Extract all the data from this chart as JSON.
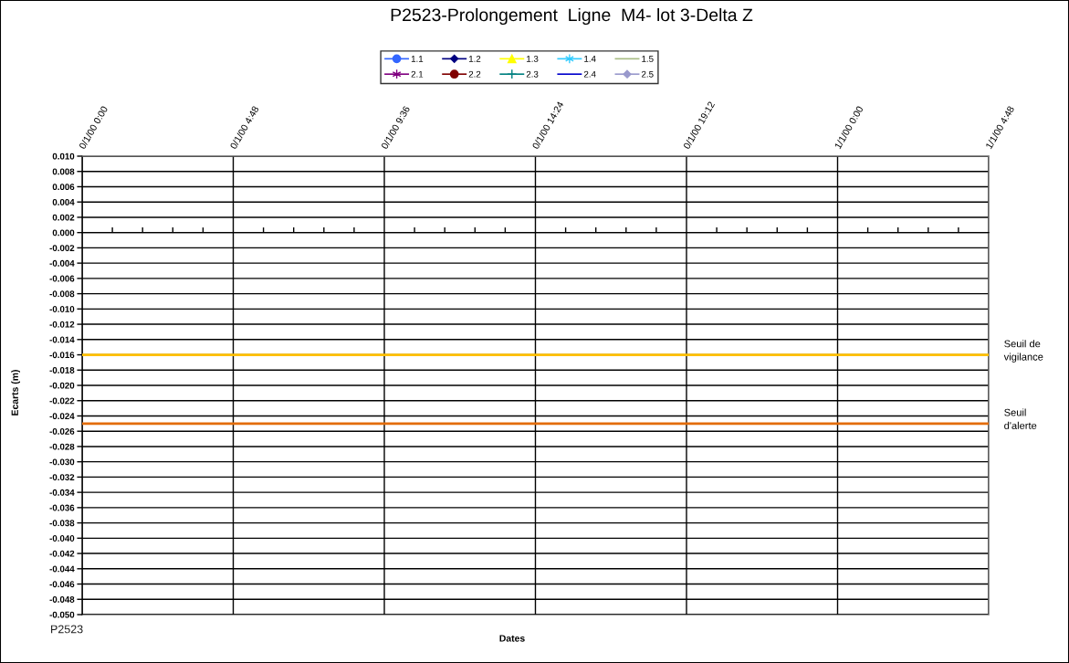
{
  "chart_data": {
    "type": "line",
    "title": "P2523-Prolongement  Ligne  M4- lot 3-Delta Z",
    "xlabel": "Dates",
    "ylabel": "Ecarts (m)",
    "annotations": [
      "P2523"
    ],
    "categories": [
      "0/1/00 0:00",
      "0/1/00 4:48",
      "0/1/00 9:36",
      "0/1/00 14:24",
      "0/1/00 19:12",
      "1/1/00 0:00",
      "1/1/00 4:48"
    ],
    "ylim": [
      -0.05,
      0.01
    ],
    "yticks": [
      {
        "value": 0.01,
        "label": "0.010"
      },
      {
        "value": 0.008,
        "label": "0.008"
      },
      {
        "value": 0.006,
        "label": "0.006"
      },
      {
        "value": 0.004,
        "label": "0.004"
      },
      {
        "value": 0.002,
        "label": "0.002"
      },
      {
        "value": 0,
        "label": "0.000"
      },
      {
        "value": -0.002,
        "label": "-0.002"
      },
      {
        "value": -0.004,
        "label": "-0.004"
      },
      {
        "value": -0.006,
        "label": "-0.006"
      },
      {
        "value": -0.008,
        "label": "-0.008"
      },
      {
        "value": -0.01,
        "label": "-0.010"
      },
      {
        "value": -0.012,
        "label": "-0.012"
      },
      {
        "value": -0.014,
        "label": "-0.014"
      },
      {
        "value": -0.016,
        "label": "-0.016"
      },
      {
        "value": -0.018,
        "label": "-0.018"
      },
      {
        "value": -0.02,
        "label": "-0.020"
      },
      {
        "value": -0.022,
        "label": "-0.022"
      },
      {
        "value": -0.024,
        "label": "-0.024"
      },
      {
        "value": -0.026,
        "label": "-0.026"
      },
      {
        "value": -0.028,
        "label": "-0.028"
      },
      {
        "value": -0.03,
        "label": "-0.030"
      },
      {
        "value": -0.032,
        "label": "-0.032"
      },
      {
        "value": -0.034,
        "label": "-0.034"
      },
      {
        "value": -0.036,
        "label": "-0.036"
      },
      {
        "value": -0.038,
        "label": "-0.038"
      },
      {
        "value": -0.04,
        "label": "-0.040"
      },
      {
        "value": -0.042,
        "label": "-0.042"
      },
      {
        "value": -0.044,
        "label": "-0.044"
      },
      {
        "value": -0.046,
        "label": "-0.046"
      },
      {
        "value": -0.048,
        "label": "-0.048"
      },
      {
        "value": -0.05,
        "label": "-0.050"
      }
    ],
    "grid": true,
    "legend": "top",
    "series": [
      {
        "name": "1.1",
        "color": "#3366ff",
        "marker": "circle",
        "values": [
          null,
          null,
          null,
          null,
          null,
          null,
          null
        ]
      },
      {
        "name": "1.2",
        "color": "#000080",
        "marker": "diamond",
        "values": [
          null,
          null,
          null,
          null,
          null,
          null,
          null
        ]
      },
      {
        "name": "1.3",
        "color": "#ffff00",
        "marker": "triangle",
        "values": [
          null,
          null,
          null,
          null,
          null,
          null,
          null
        ]
      },
      {
        "name": "1.4",
        "color": "#33ccff",
        "marker": "star",
        "values": [
          null,
          null,
          null,
          null,
          null,
          null,
          null
        ]
      },
      {
        "name": "1.5",
        "color": "#a8bc84",
        "marker": "none",
        "values": [
          null,
          null,
          null,
          null,
          null,
          null,
          null
        ]
      },
      {
        "name": "2.1",
        "color": "#800080",
        "marker": "star",
        "values": [
          null,
          null,
          null,
          null,
          null,
          null,
          null
        ]
      },
      {
        "name": "2.2",
        "color": "#800000",
        "marker": "circle",
        "values": [
          null,
          null,
          null,
          null,
          null,
          null,
          null
        ]
      },
      {
        "name": "2.3",
        "color": "#008080",
        "marker": "cross",
        "values": [
          null,
          null,
          null,
          null,
          null,
          null,
          null
        ]
      },
      {
        "name": "2.4",
        "color": "#0000cc",
        "marker": "none",
        "values": [
          null,
          null,
          null,
          null,
          null,
          null,
          null
        ]
      },
      {
        "name": "2.5",
        "color": "#9999cc",
        "marker": "diamond",
        "values": [
          null,
          null,
          null,
          null,
          null,
          null,
          null
        ]
      }
    ],
    "ref_lines": [
      {
        "axis": "y",
        "value": -0.016,
        "label": "Seuil de\nvigilance",
        "color": "#ffc000"
      },
      {
        "axis": "y",
        "value": -0.025,
        "label": "Seuil\nd'alerte",
        "color": "#e36c09"
      }
    ]
  }
}
